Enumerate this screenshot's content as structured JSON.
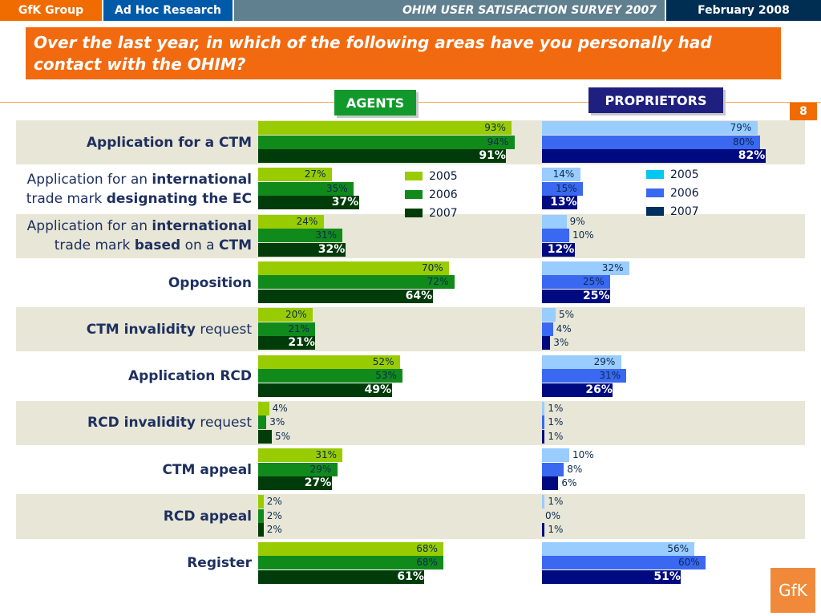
{
  "header": {
    "company": "GfK Group",
    "department": "Ad Hoc Research",
    "survey": "OHIM USER SATISFACTION SURVEY 2007",
    "date": "February  2008"
  },
  "question": "Over the last year, in which of the following areas have you personally had contact with the OHIM?",
  "page_number": "8",
  "logo_text": "GfK",
  "colors": {
    "agents": [
      "#99cc00",
      "#118a1c",
      "#003c0a"
    ],
    "proprietors": [
      "#99ccff",
      "#3a68f0",
      "#000a80"
    ]
  },
  "chart_data": {
    "type": "bar",
    "orientation": "horizontal",
    "groups": [
      "AGENTS",
      "PROPRIETORS"
    ],
    "legends": {
      "agents": [
        "2005",
        "2006",
        "2007"
      ],
      "proprietors": [
        "2005",
        "2006",
        "2007"
      ]
    },
    "xlim": [
      0,
      100
    ],
    "unit": "%",
    "categories": [
      {
        "label_html": "<b>Application for a CTM</b>",
        "agents": [
          93,
          94,
          91
        ],
        "proprietors": [
          79,
          80,
          82
        ]
      },
      {
        "label_html": "Application for an <b>international</b><br>trade mark <b>designating the EC</b>",
        "agents": [
          27,
          35,
          37
        ],
        "proprietors": [
          14,
          15,
          13
        ]
      },
      {
        "label_html": "Application for an <b>international</b><br>trade mark <b>based</b> on a <b>CTM</b>",
        "agents": [
          24,
          31,
          32
        ],
        "proprietors": [
          9,
          10,
          12
        ]
      },
      {
        "label_html": "<b>Opposition</b>",
        "agents": [
          70,
          72,
          64
        ],
        "proprietors": [
          32,
          25,
          25
        ]
      },
      {
        "label_html": "<b>CTM invalidity</b> request",
        "agents": [
          20,
          21,
          21
        ],
        "proprietors": [
          5,
          4,
          3
        ]
      },
      {
        "label_html": "<b>Application RCD</b>",
        "agents": [
          52,
          53,
          49
        ],
        "proprietors": [
          29,
          31,
          26
        ]
      },
      {
        "label_html": "<b>RCD invalidity</b> request",
        "agents": [
          4,
          3,
          5
        ],
        "proprietors": [
          1,
          1,
          1
        ]
      },
      {
        "label_html": "<b>CTM appeal</b>",
        "agents": [
          31,
          29,
          27
        ],
        "proprietors": [
          10,
          8,
          6
        ]
      },
      {
        "label_html": "<b>RCD appeal</b>",
        "agents": [
          2,
          2,
          2
        ],
        "proprietors": [
          1,
          0,
          1
        ]
      },
      {
        "label_html": "<b>Register</b>",
        "agents": [
          68,
          68,
          61
        ],
        "proprietors": [
          56,
          60,
          51
        ]
      }
    ]
  }
}
